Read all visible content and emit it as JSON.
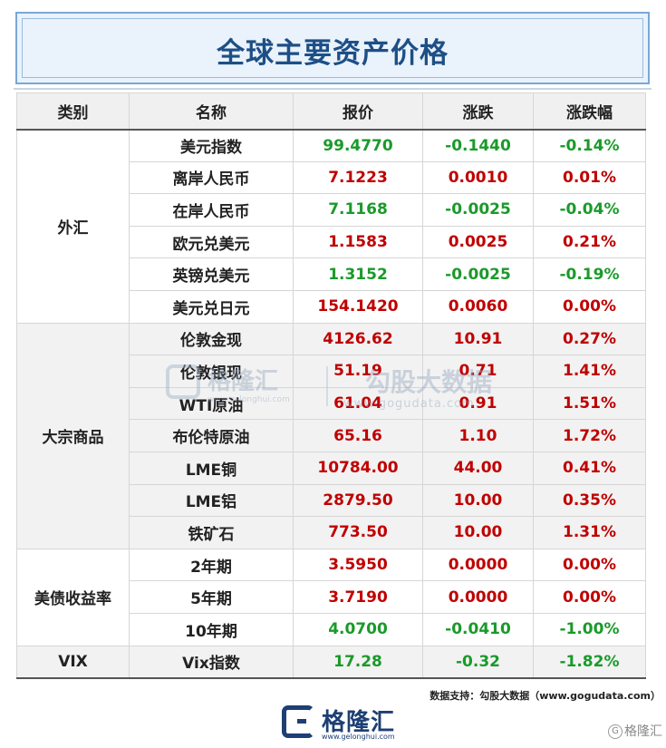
{
  "title": "全球主要资产价格",
  "headers": [
    "类别",
    "名称",
    "报价",
    "涨跌",
    "涨跌幅"
  ],
  "groups": [
    {
      "category": "外汇",
      "rows": [
        {
          "name": "美元指数",
          "price": "99.4770",
          "change": "-0.1440",
          "pct": "-0.14%",
          "dir": "down"
        },
        {
          "name": "离岸人民币",
          "price": "7.1223",
          "change": "0.0010",
          "pct": "0.01%",
          "dir": "up"
        },
        {
          "name": "在岸人民币",
          "price": "7.1168",
          "change": "-0.0025",
          "pct": "-0.04%",
          "dir": "down"
        },
        {
          "name": "欧元兑美元",
          "price": "1.1583",
          "change": "0.0025",
          "pct": "0.21%",
          "dir": "up"
        },
        {
          "name": "英镑兑美元",
          "price": "1.3152",
          "change": "-0.0025",
          "pct": "-0.19%",
          "dir": "down"
        },
        {
          "name": "美元兑日元",
          "price": "154.1420",
          "change": "0.0060",
          "pct": "0.00%",
          "dir": "up"
        }
      ]
    },
    {
      "category": "大宗商品",
      "rows": [
        {
          "name": "伦敦金现",
          "price": "4126.62",
          "change": "10.91",
          "pct": "0.27%",
          "dir": "up"
        },
        {
          "name": "伦敦银现",
          "price": "51.19",
          "change": "0.71",
          "pct": "1.41%",
          "dir": "up"
        },
        {
          "name": "WTI原油",
          "price": "61.04",
          "change": "0.91",
          "pct": "1.51%",
          "dir": "up"
        },
        {
          "name": "布伦特原油",
          "price": "65.16",
          "change": "1.10",
          "pct": "1.72%",
          "dir": "up"
        },
        {
          "name": "LME铜",
          "price": "10784.00",
          "change": "44.00",
          "pct": "0.41%",
          "dir": "up"
        },
        {
          "name": "LME铝",
          "price": "2879.50",
          "change": "10.00",
          "pct": "0.35%",
          "dir": "up"
        },
        {
          "name": "铁矿石",
          "price": "773.50",
          "change": "10.00",
          "pct": "1.31%",
          "dir": "up"
        }
      ]
    },
    {
      "category": "美债收益率",
      "rows": [
        {
          "name": "2年期",
          "price": "3.5950",
          "change": "0.0000",
          "pct": "0.00%",
          "dir": "up"
        },
        {
          "name": "5年期",
          "price": "3.7190",
          "change": "0.0000",
          "pct": "0.00%",
          "dir": "up"
        },
        {
          "name": "10年期",
          "price": "4.0700",
          "change": "-0.0410",
          "pct": "-1.00%",
          "dir": "down"
        }
      ]
    },
    {
      "category": "VIX",
      "rows": [
        {
          "name": "Vix指数",
          "price": "17.28",
          "change": "-0.32",
          "pct": "-1.82%",
          "dir": "down"
        }
      ]
    }
  ],
  "watermark": {
    "brand": "格隆汇",
    "brand_url": "www.gelonghui.com",
    "name": "勾股大数据",
    "url": "www.gogudata.com"
  },
  "source": "数据支持：勾股大数据（www.gogudata.com）",
  "footer": {
    "brand": "格隆汇",
    "url": "www.gelonghui.com"
  },
  "corner": "格隆汇",
  "colors": {
    "up": "#c00000",
    "down": "#1a9a2a",
    "title": "#1d4f86"
  }
}
